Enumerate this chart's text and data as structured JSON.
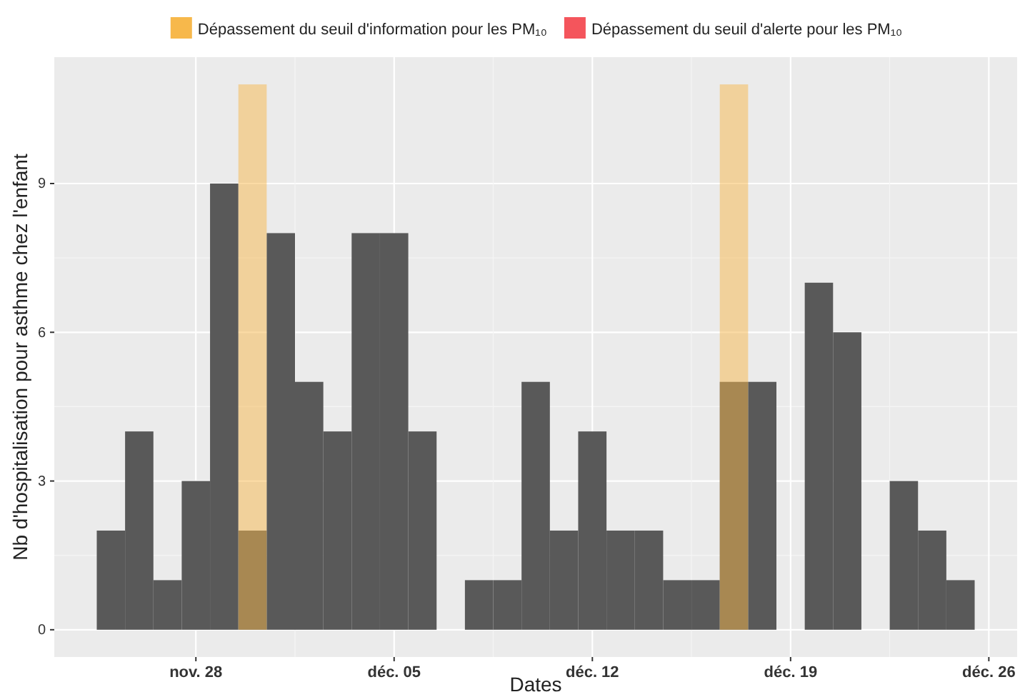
{
  "chart_data": {
    "type": "bar",
    "xlabel": "Dates",
    "ylabel": "Nb d'hospitalisation pour asthme chez l'enfant",
    "x": [
      "--11-25",
      "--11-26",
      "--11-27",
      "--11-28",
      "--11-29",
      "--11-30",
      "--12-01",
      "--12-02",
      "--12-03",
      "--12-04",
      "--12-05",
      "--12-06",
      "--12-07",
      "--12-08",
      "--12-09",
      "--12-10",
      "--12-11",
      "--12-12",
      "--12-13",
      "--12-14",
      "--12-15",
      "--12-16",
      "--12-17",
      "--12-18",
      "--12-19",
      "--12-20",
      "--12-21",
      "--12-22",
      "--12-23",
      "--12-24",
      "--12-25"
    ],
    "series": [
      {
        "color": "#595959",
        "values": [
          2,
          4,
          1,
          3,
          9,
          2,
          8,
          5,
          4,
          8,
          8,
          4,
          0,
          1,
          1,
          5,
          2,
          4,
          2,
          2,
          1,
          1,
          5,
          5,
          0,
          7,
          6,
          0,
          3,
          2,
          1
        ]
      },
      {
        "name": "Dépassement du seuil d'information pour les PM₁₀",
        "color": "#f7b84b",
        "values": [
          null,
          null,
          null,
          null,
          null,
          11,
          null,
          null,
          null,
          null,
          null,
          null,
          null,
          null,
          null,
          null,
          null,
          null,
          null,
          null,
          null,
          null,
          11,
          null,
          null,
          null,
          null,
          null,
          null,
          null,
          null
        ]
      },
      {
        "name": "Dépassement du seuil d'alerte pour les PM₁₀",
        "color": "#f4555c",
        "values": [
          null,
          null,
          null,
          null,
          null,
          null,
          null,
          null,
          null,
          null,
          null,
          null,
          null,
          null,
          null,
          null,
          null,
          null,
          null,
          null,
          null,
          null,
          null,
          null,
          null,
          null,
          null,
          null,
          null,
          null,
          null
        ]
      }
    ],
    "xlim": [
      "--11-23",
      "--12-27"
    ],
    "xticks": [
      {
        "value": "--11-28",
        "label": "nov. 28"
      },
      {
        "value": "--12-05",
        "label": "déc. 05"
      },
      {
        "value": "--12-12",
        "label": "déc. 12"
      },
      {
        "value": "--12-19",
        "label": "déc. 19"
      },
      {
        "value": "--12-26",
        "label": "déc. 26"
      }
    ],
    "ylim": [
      -0.55,
      11.55
    ],
    "yticks": [
      0,
      3,
      6,
      9
    ],
    "grid": true,
    "legend": "top"
  }
}
